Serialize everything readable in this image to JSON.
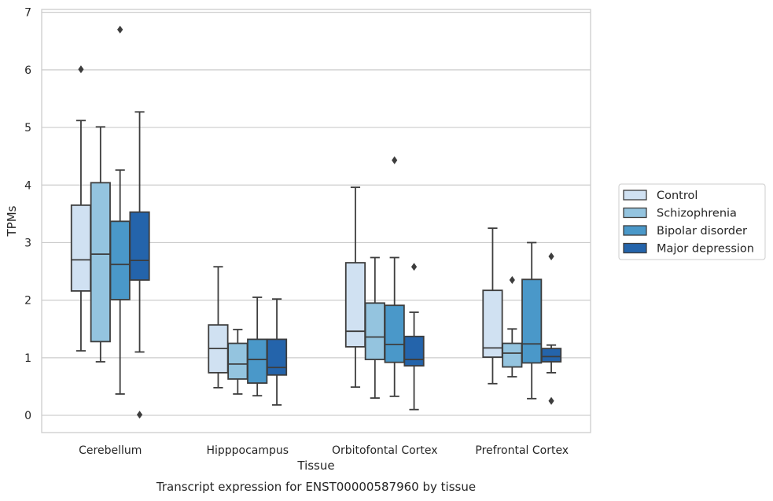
{
  "chart_data": {
    "type": "box",
    "caption": "Transcript expression for ENST00000587960 by tissue",
    "xlabel": "Tissue",
    "ylabel": "TPMs",
    "ylim": [
      -0.3,
      7.05
    ],
    "yticks": [
      0,
      1,
      2,
      3,
      4,
      5,
      6,
      7
    ],
    "grid": "horizontal",
    "legend_position": "right",
    "categories": [
      "Cerebellum",
      "Hipppocampus",
      "Orbitofontal Cortex",
      "Prefrontal Cortex"
    ],
    "series": [
      {
        "name": "Control",
        "color": "#d0e1f2",
        "boxes": [
          {
            "whislo": 1.12,
            "q1": 2.16,
            "med": 2.7,
            "q3": 3.65,
            "whishi": 5.12,
            "fliers": [
              6.01
            ]
          },
          {
            "whislo": 0.48,
            "q1": 0.74,
            "med": 1.16,
            "q3": 1.57,
            "whishi": 2.58,
            "fliers": []
          },
          {
            "whislo": 0.49,
            "q1": 1.19,
            "med": 1.46,
            "q3": 2.65,
            "whishi": 3.96,
            "fliers": []
          },
          {
            "whislo": 0.55,
            "q1": 1.01,
            "med": 1.17,
            "q3": 2.17,
            "whishi": 3.25,
            "fliers": []
          }
        ]
      },
      {
        "name": "Schizophrenia",
        "color": "#94c4df",
        "boxes": [
          {
            "whislo": 0.93,
            "q1": 1.28,
            "med": 2.8,
            "q3": 4.04,
            "whishi": 5.01,
            "fliers": []
          },
          {
            "whislo": 0.37,
            "q1": 0.63,
            "med": 0.89,
            "q3": 1.25,
            "whishi": 1.49,
            "fliers": []
          },
          {
            "whislo": 0.3,
            "q1": 0.97,
            "med": 1.36,
            "q3": 1.95,
            "whishi": 2.74,
            "fliers": []
          },
          {
            "whislo": 0.67,
            "q1": 0.84,
            "med": 1.08,
            "q3": 1.25,
            "whishi": 1.5,
            "fliers": [
              2.35
            ]
          }
        ]
      },
      {
        "name": "Bipolar disorder",
        "color": "#4a98c9",
        "boxes": [
          {
            "whislo": 0.37,
            "q1": 2.01,
            "med": 2.62,
            "q3": 3.37,
            "whishi": 4.26,
            "fliers": [
              6.7
            ]
          },
          {
            "whislo": 0.34,
            "q1": 0.56,
            "med": 0.97,
            "q3": 1.32,
            "whishi": 2.05,
            "fliers": []
          },
          {
            "whislo": 0.33,
            "q1": 0.92,
            "med": 1.23,
            "q3": 1.91,
            "whishi": 2.74,
            "fliers": [
              4.43
            ]
          },
          {
            "whislo": 0.29,
            "q1": 0.91,
            "med": 1.24,
            "q3": 2.36,
            "whishi": 3.0,
            "fliers": []
          }
        ]
      },
      {
        "name": "Major depression",
        "color": "#2464ab",
        "boxes": [
          {
            "whislo": 1.1,
            "q1": 2.35,
            "med": 2.69,
            "q3": 3.53,
            "whishi": 5.27,
            "fliers": [
              0.01
            ]
          },
          {
            "whislo": 0.18,
            "q1": 0.7,
            "med": 0.83,
            "q3": 1.32,
            "whishi": 2.02,
            "fliers": []
          },
          {
            "whislo": 0.1,
            "q1": 0.86,
            "med": 0.97,
            "q3": 1.37,
            "whishi": 1.79,
            "fliers": [
              2.58
            ]
          },
          {
            "whislo": 0.74,
            "q1": 0.93,
            "med": 1.02,
            "q3": 1.16,
            "whishi": 1.22,
            "fliers": [
              2.76,
              0.25
            ]
          }
        ]
      }
    ]
  },
  "colors": {
    "grid": "#cccccc",
    "frame": "#cccccc",
    "box_edge": "#3d3d3d",
    "text": "#262626"
  }
}
